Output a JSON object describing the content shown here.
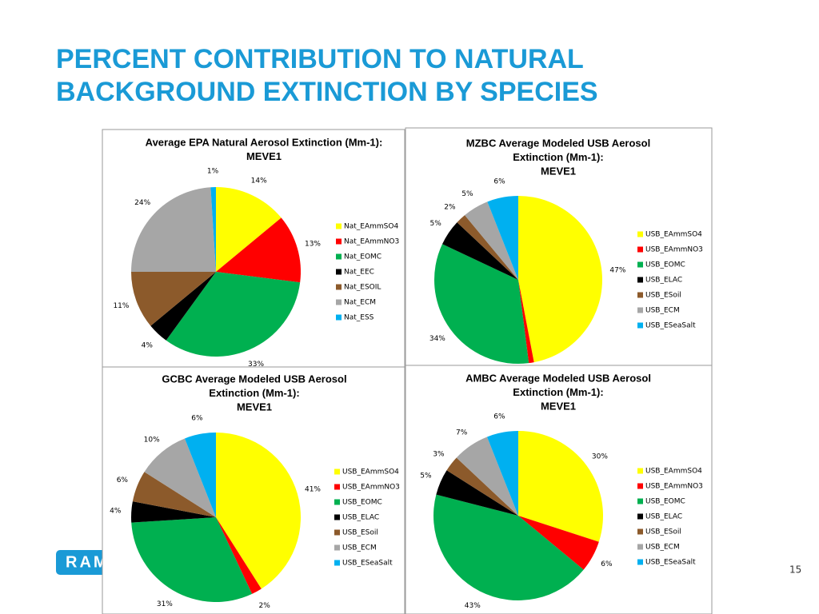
{
  "slide": {
    "title": [
      "PERCENT CONTRIBUTION TO NATURAL",
      "BACKGROUND EXTINCTION BY SPECIES"
    ],
    "logo": "RAM",
    "page_number": "15"
  },
  "chart_data": [
    {
      "type": "pie",
      "title": [
        "Average EPA Natural Aerosol Extinction (Mm-1):",
        "MEVE1"
      ],
      "categories": [
        "Nat_EAmmSO4",
        "Nat_EAmmNO3",
        "Nat_EOMC",
        "Nat_EEC",
        "Nat_ESOIL",
        "Nat_ECM",
        "Nat_ESS"
      ],
      "values": [
        14,
        13,
        33,
        4,
        11,
        24,
        1
      ],
      "value_labels": [
        "14%",
        "13%",
        "33%",
        "4%",
        "11%",
        "24%",
        "1%"
      ],
      "colors": [
        "#ffff00",
        "#ff0000",
        "#00b050",
        "#000000",
        "#8c5a2b",
        "#a6a6a6",
        "#00b0f0"
      ]
    },
    {
      "type": "pie",
      "title": [
        "MZBC Average Modeled USB Aerosol",
        "Extinction (Mm-1):",
        "MEVE1"
      ],
      "categories": [
        "USB_EAmmSO4",
        "USB_EAmmNO3",
        "USB_EOMC",
        "USB_ELAC",
        "USB_ESoil",
        "USB_ECM",
        "USB_ESeaSalt"
      ],
      "values": [
        47,
        1,
        34,
        5,
        2,
        5,
        6
      ],
      "value_labels": [
        "47%",
        null,
        "34%",
        "5%",
        "2%",
        "5%",
        "6%"
      ],
      "colors": [
        "#ffff00",
        "#ff0000",
        "#00b050",
        "#000000",
        "#8c5a2b",
        "#a6a6a6",
        "#00b0f0"
      ]
    },
    {
      "type": "pie",
      "title": [
        "GCBC Average Modeled USB Aerosol",
        "Extinction (Mm-1):",
        "MEVE1"
      ],
      "categories": [
        "USB_EAmmSO4",
        "USB_EAmmNO3",
        "USB_EOMC",
        "USB_ELAC",
        "USB_ESoil",
        "USB_ECM",
        "USB_ESeaSalt"
      ],
      "values": [
        41,
        2,
        31,
        4,
        6,
        10,
        6
      ],
      "value_labels": [
        "41%",
        "2%",
        "31%",
        "4%",
        "6%",
        "10%",
        "6%"
      ],
      "colors": [
        "#ffff00",
        "#ff0000",
        "#00b050",
        "#000000",
        "#8c5a2b",
        "#a6a6a6",
        "#00b0f0"
      ]
    },
    {
      "type": "pie",
      "title": [
        "AMBC Average Modeled USB Aerosol",
        "Extinction (Mm-1):",
        "MEVE1"
      ],
      "categories": [
        "USB_EAmmSO4",
        "USB_EAmmNO3",
        "USB_EOMC",
        "USB_ELAC",
        "USB_ESoil",
        "USB_ECM",
        "USB_ESeaSalt"
      ],
      "values": [
        30,
        6,
        43,
        5,
        3,
        7,
        6
      ],
      "value_labels": [
        "30%",
        "6%",
        "43%",
        "5%",
        "3%",
        "7%",
        "6%"
      ],
      "colors": [
        "#ffff00",
        "#ff0000",
        "#00b050",
        "#000000",
        "#8c5a2b",
        "#a6a6a6",
        "#00b0f0"
      ]
    }
  ]
}
